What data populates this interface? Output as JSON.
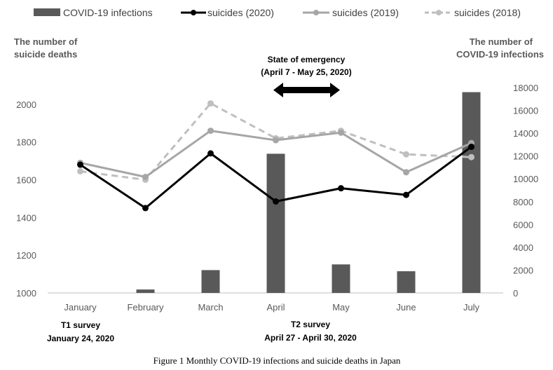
{
  "chart_data": {
    "type": "bar",
    "categories": [
      "January",
      "February",
      "March",
      "April",
      "May",
      "June",
      "July"
    ],
    "bar_series": {
      "name": "COVID-19 infections",
      "axis": "right",
      "color": "#595959",
      "values": [
        0,
        300,
        2000,
        12200,
        2500,
        1900,
        17600
      ]
    },
    "series": [
      {
        "name": "suicides (2020)",
        "axis": "left",
        "color": "#000000",
        "style": "solid",
        "values": [
          1680,
          1450,
          1740,
          1485,
          1555,
          1520,
          1775
        ]
      },
      {
        "name": "suicides (2019)",
        "axis": "left",
        "color": "#a6a6a6",
        "style": "solid",
        "values": [
          1690,
          1615,
          1860,
          1810,
          1850,
          1640,
          1795
        ]
      },
      {
        "name": "suicides (2018)",
        "axis": "left",
        "color": "#bfbfbf",
        "style": "dashed",
        "values": [
          1645,
          1600,
          2005,
          1820,
          1860,
          1735,
          1720
        ]
      }
    ],
    "left_axis": {
      "title_line1": "The number of",
      "title_line2": "suicide deaths",
      "ylim": [
        1000,
        2100
      ],
      "ticks": [
        "1000",
        "1200",
        "1400",
        "1600",
        "1800",
        "2000"
      ]
    },
    "right_axis": {
      "title_line1": "The number of",
      "title_line2": "COVID-19 infections",
      "ylim": [
        0,
        18000
      ],
      "ticks": [
        "0",
        "2000",
        "4000",
        "6000",
        "8000",
        "10000",
        "12000",
        "14000",
        "16000",
        "18000"
      ]
    },
    "legend_position": "top",
    "annotations": {
      "emergency_line1": "State of emergency",
      "emergency_line2": "(April 7 - May 25, 2020)",
      "t1_line1": "T1 survey",
      "t1_line2": "January 24, 2020",
      "t2_line1": "T2 survey",
      "t2_line2": "April 27 - April 30, 2020"
    },
    "caption": "Figure 1 Monthly COVID-19 infections and suicide deaths in Japan",
    "grid": false
  }
}
